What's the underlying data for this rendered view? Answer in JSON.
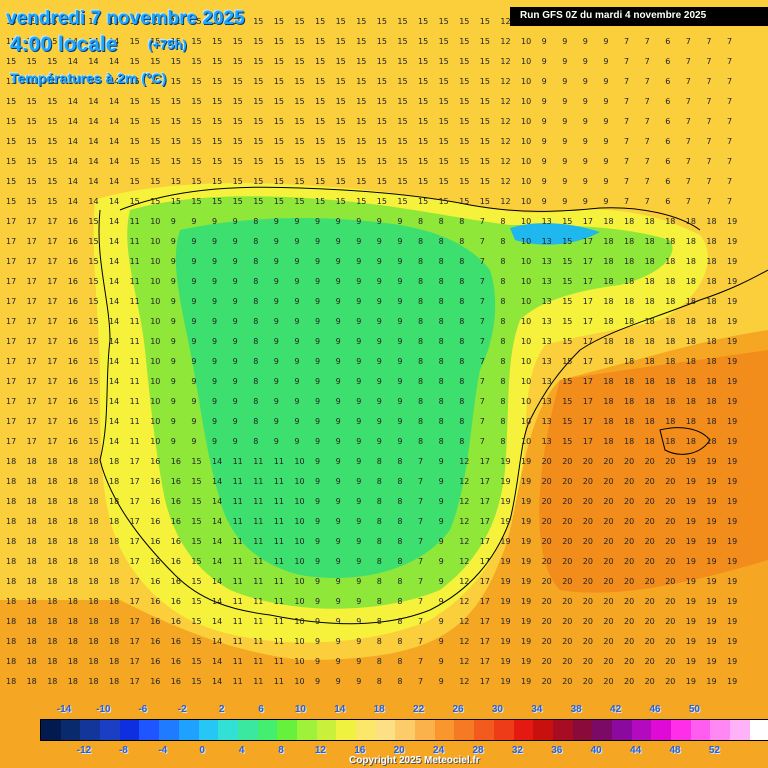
{
  "header": {
    "date": "vendredi 7 novembre 2025",
    "time": "4:00 locale",
    "offset": "(+75h)",
    "variable": "Températures à 2m (°C)"
  },
  "run": "Run GFS 0Z du mardi 4 novembre 2025",
  "copyright": "Copyright 2025 Meteociel.fr",
  "scale": {
    "top_labels": [
      "-14",
      "-10",
      "-6",
      "-2",
      "2",
      "6",
      "10",
      "14",
      "18",
      "22",
      "26",
      "30",
      "34",
      "38",
      "42",
      "46",
      "50"
    ],
    "bottom_labels": [
      "-12",
      "-8",
      "-4",
      "0",
      "4",
      "8",
      "12",
      "16",
      "20",
      "24",
      "28",
      "32",
      "36",
      "40",
      "44",
      "48",
      "52"
    ],
    "colors": [
      "#021a4f",
      "#0a2a6e",
      "#12369a",
      "#1a3fc4",
      "#0e2fe0",
      "#1f55ff",
      "#1f7bff",
      "#1fa2ff",
      "#26c6f5",
      "#33e0d6",
      "#3be8a0",
      "#44ee70",
      "#66f23c",
      "#9ef23a",
      "#c9f03b",
      "#eff23e",
      "#fbe76a",
      "#fddf86",
      "#fccb6a",
      "#fbb24b",
      "#f9962e",
      "#f67a24",
      "#f25a1e",
      "#ee3c18",
      "#e41a12",
      "#c8100e",
      "#a80c22",
      "#8a0a3c",
      "#7a0a66",
      "#8a0aa0",
      "#b30ac0",
      "#e00ad6",
      "#ff2ee8",
      "#ff5cf0",
      "#ff88f4",
      "#ffb2f8",
      "#ffffff"
    ]
  },
  "map_colors": {
    "sea_hot": "#f5a623",
    "sea_warm": "#fbcf3b",
    "land_mild": "#f6f23b",
    "land_cool": "#8fe73a",
    "land_cold": "#3de06e",
    "very_cold": "#1fb8ee",
    "hot": "#f28c1a"
  },
  "grid_sample_values": {
    "row_top": [
      "15",
      "15",
      "15",
      "14",
      "14",
      "14",
      "15",
      "15",
      "15",
      "15",
      "15",
      "15",
      "15",
      "15",
      "15",
      "15",
      "15",
      "15",
      "15",
      "15",
      "15",
      "15",
      "15",
      "15",
      "12",
      "10",
      "9",
      "9",
      "9",
      "9",
      "7",
      "7",
      "6",
      "7",
      "7",
      "7"
    ],
    "row_mid": [
      "17",
      "17",
      "17",
      "16",
      "15",
      "14",
      "11",
      "10",
      "9",
      "9",
      "9",
      "9",
      "8",
      "9",
      "9",
      "9",
      "9",
      "9",
      "9",
      "9",
      "8",
      "8",
      "8",
      "7",
      "8",
      "10",
      "13",
      "15",
      "17",
      "18",
      "18",
      "18",
      "18",
      "18",
      "18",
      "19"
    ],
    "row_low": [
      "18",
      "18",
      "18",
      "18",
      "18",
      "18",
      "17",
      "16",
      "16",
      "15",
      "14",
      "11",
      "11",
      "11",
      "10",
      "9",
      "9",
      "9",
      "8",
      "8",
      "7",
      "9",
      "12",
      "17",
      "19",
      "19",
      "20",
      "20",
      "20",
      "20",
      "20",
      "20",
      "20",
      "19",
      "19",
      "19"
    ]
  }
}
